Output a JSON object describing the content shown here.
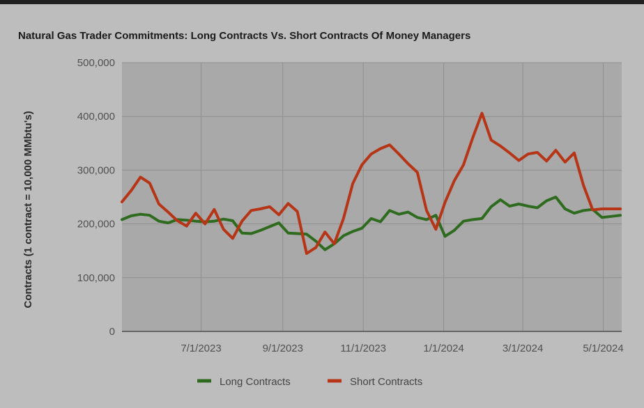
{
  "chart_data": {
    "type": "line",
    "title": "Natural Gas Trader Commitments: Long Contracts Vs. Short Contracts Of Money Managers",
    "ylabel": "Contracts (1 contract = 10,000 MMbtu's)",
    "xlabel": "",
    "ylim": [
      0,
      500000
    ],
    "yticks": [
      0,
      100000,
      200000,
      300000,
      400000,
      500000
    ],
    "ytick_labels": [
      "0",
      "100,000",
      "200,000",
      "300,000",
      "400,000",
      "500,000"
    ],
    "xlim": [
      "2023-05-02",
      "2024-05-15"
    ],
    "xticks": [
      "2023-07-01",
      "2023-09-01",
      "2023-11-01",
      "2024-01-01",
      "2024-03-01",
      "2024-05-01"
    ],
    "xtick_labels": [
      "7/1/2023",
      "9/1/2023",
      "11/1/2023",
      "1/1/2024",
      "3/1/2024",
      "5/1/2024"
    ],
    "grid": true,
    "legend_position": "bottom",
    "x": [
      "2023-05-02",
      "2023-05-09",
      "2023-05-16",
      "2023-05-23",
      "2023-05-30",
      "2023-06-06",
      "2023-06-13",
      "2023-06-20",
      "2023-06-27",
      "2023-07-04",
      "2023-07-11",
      "2023-07-18",
      "2023-07-25",
      "2023-08-01",
      "2023-08-08",
      "2023-08-15",
      "2023-08-22",
      "2023-08-29",
      "2023-09-05",
      "2023-09-12",
      "2023-09-19",
      "2023-09-26",
      "2023-10-03",
      "2023-10-10",
      "2023-10-17",
      "2023-10-24",
      "2023-10-31",
      "2023-11-07",
      "2023-11-14",
      "2023-11-21",
      "2023-11-28",
      "2023-12-05",
      "2023-12-12",
      "2023-12-19",
      "2023-12-26",
      "2024-01-02",
      "2024-01-09",
      "2024-01-16",
      "2024-01-23",
      "2024-01-30",
      "2024-02-06",
      "2024-02-13",
      "2024-02-20",
      "2024-02-27",
      "2024-03-05",
      "2024-03-12",
      "2024-03-19",
      "2024-03-26",
      "2024-04-02",
      "2024-04-09",
      "2024-04-16",
      "2024-04-23",
      "2024-04-30",
      "2024-05-07",
      "2024-05-14"
    ],
    "series": [
      {
        "name": "Long Contracts",
        "color": "#2e6b1f",
        "values": [
          208000,
          215000,
          218000,
          216000,
          205000,
          202000,
          208000,
          207000,
          205000,
          204000,
          205000,
          209000,
          206000,
          183000,
          182000,
          188000,
          195000,
          202000,
          183000,
          182000,
          181000,
          168000,
          152000,
          163000,
          178000,
          186000,
          192000,
          210000,
          204000,
          225000,
          218000,
          222000,
          212000,
          208000,
          216000,
          177000,
          188000,
          205000,
          208000,
          210000,
          232000,
          245000,
          233000,
          237000,
          233000,
          230000,
          243000,
          250000,
          228000,
          220000,
          225000,
          227000,
          212000,
          214000,
          216000
        ]
      },
      {
        "name": "Short Contracts",
        "color": "#b63516",
        "values": [
          241000,
          262000,
          287000,
          276000,
          237000,
          222000,
          206000,
          196000,
          220000,
          200000,
          227000,
          190000,
          173000,
          205000,
          225000,
          228000,
          232000,
          217000,
          238000,
          223000,
          145000,
          156000,
          185000,
          163000,
          210000,
          275000,
          310000,
          330000,
          340000,
          347000,
          330000,
          312000,
          296000,
          225000,
          190000,
          240000,
          280000,
          310000,
          360000,
          406000,
          356000,
          345000,
          332000,
          318000,
          330000,
          333000,
          317000,
          337000,
          315000,
          332000,
          272000,
          226000,
          228000,
          228000,
          228000
        ]
      }
    ]
  }
}
